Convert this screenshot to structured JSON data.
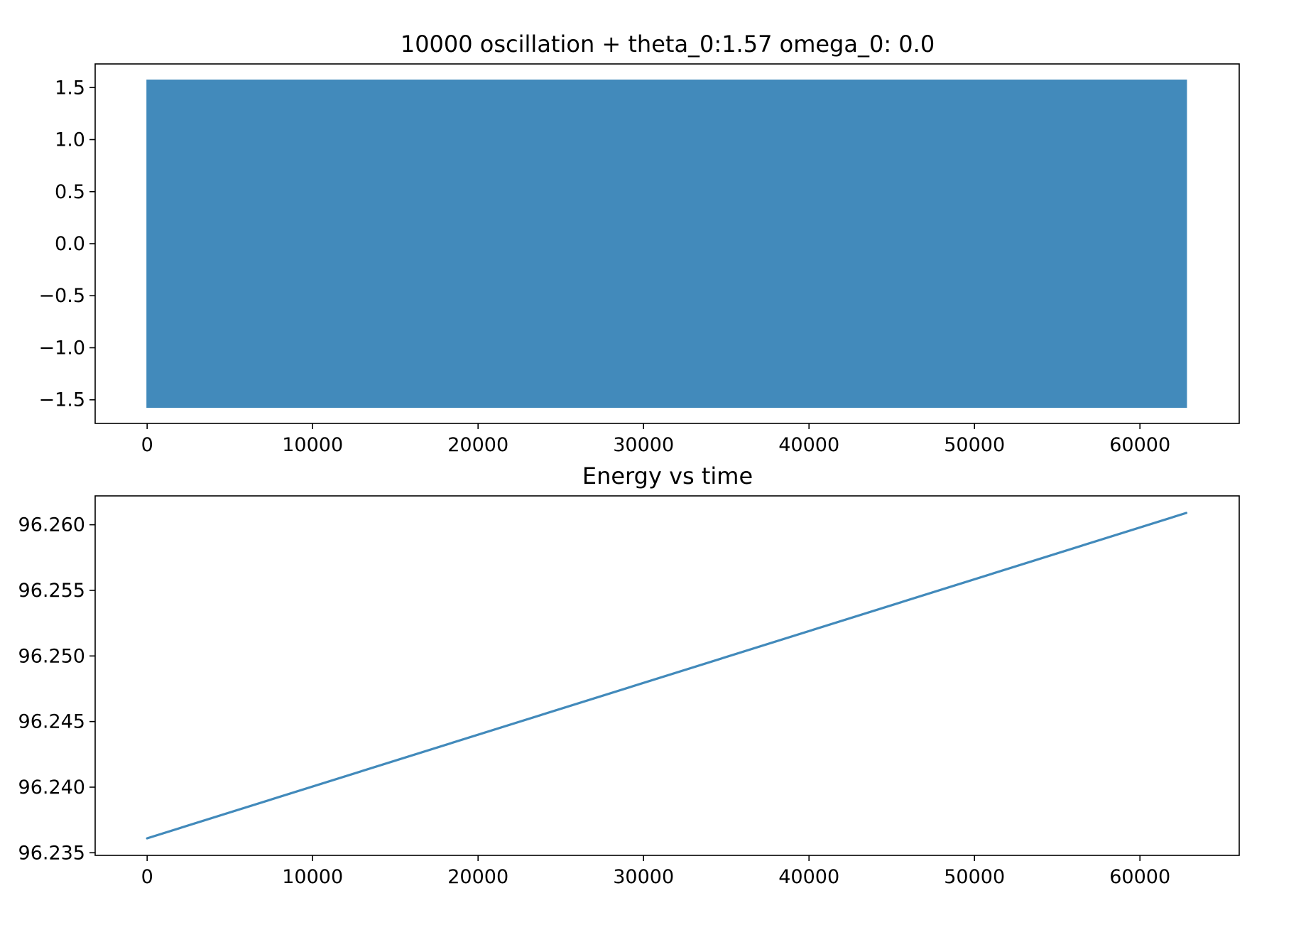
{
  "colors": {
    "series": "#428ABB",
    "axes": "#000000",
    "background": "#ffffff"
  },
  "chart_data": [
    {
      "type": "line",
      "title": "10000 oscillation + theta_0:1.57 omega_0: 0.0",
      "xlabel": "",
      "ylabel": "",
      "grid": false,
      "xlim": [
        -3141,
        66000
      ],
      "ylim": [
        -1.727,
        1.727
      ],
      "xticks": [
        0,
        10000,
        20000,
        30000,
        40000,
        50000,
        60000
      ],
      "xtick_labels": [
        "0",
        "10000",
        "20000",
        "30000",
        "40000",
        "50000",
        "60000"
      ],
      "yticks": [
        1.5,
        1.0,
        0.5,
        0.0,
        -0.5,
        -1.0,
        -1.5
      ],
      "ytick_labels": [
        "1.5",
        "1.0",
        "0.5",
        "0.0",
        "−0.5",
        "−1.0",
        "−1.5"
      ],
      "series": [
        {
          "x_start": 0,
          "x_end": 62800,
          "oscillation_count": 10000,
          "amplitude": 1.57,
          "y_min": -1.57,
          "y_max": 1.57
        }
      ]
    },
    {
      "type": "line",
      "title": "Energy vs time",
      "xlabel": "",
      "ylabel": "",
      "grid": false,
      "xlim": [
        -3141,
        66000
      ],
      "ylim": [
        96.2348,
        96.2622
      ],
      "xticks": [
        0,
        10000,
        20000,
        30000,
        40000,
        50000,
        60000
      ],
      "xtick_labels": [
        "0",
        "10000",
        "20000",
        "30000",
        "40000",
        "50000",
        "60000"
      ],
      "yticks": [
        96.26,
        96.255,
        96.25,
        96.245,
        96.24,
        96.235
      ],
      "ytick_labels": [
        "96.260",
        "96.255",
        "96.250",
        "96.245",
        "96.240",
        "96.235"
      ],
      "series": [
        {
          "x": [
            0,
            62800
          ],
          "y": [
            96.2361,
            96.2609
          ]
        }
      ]
    }
  ]
}
